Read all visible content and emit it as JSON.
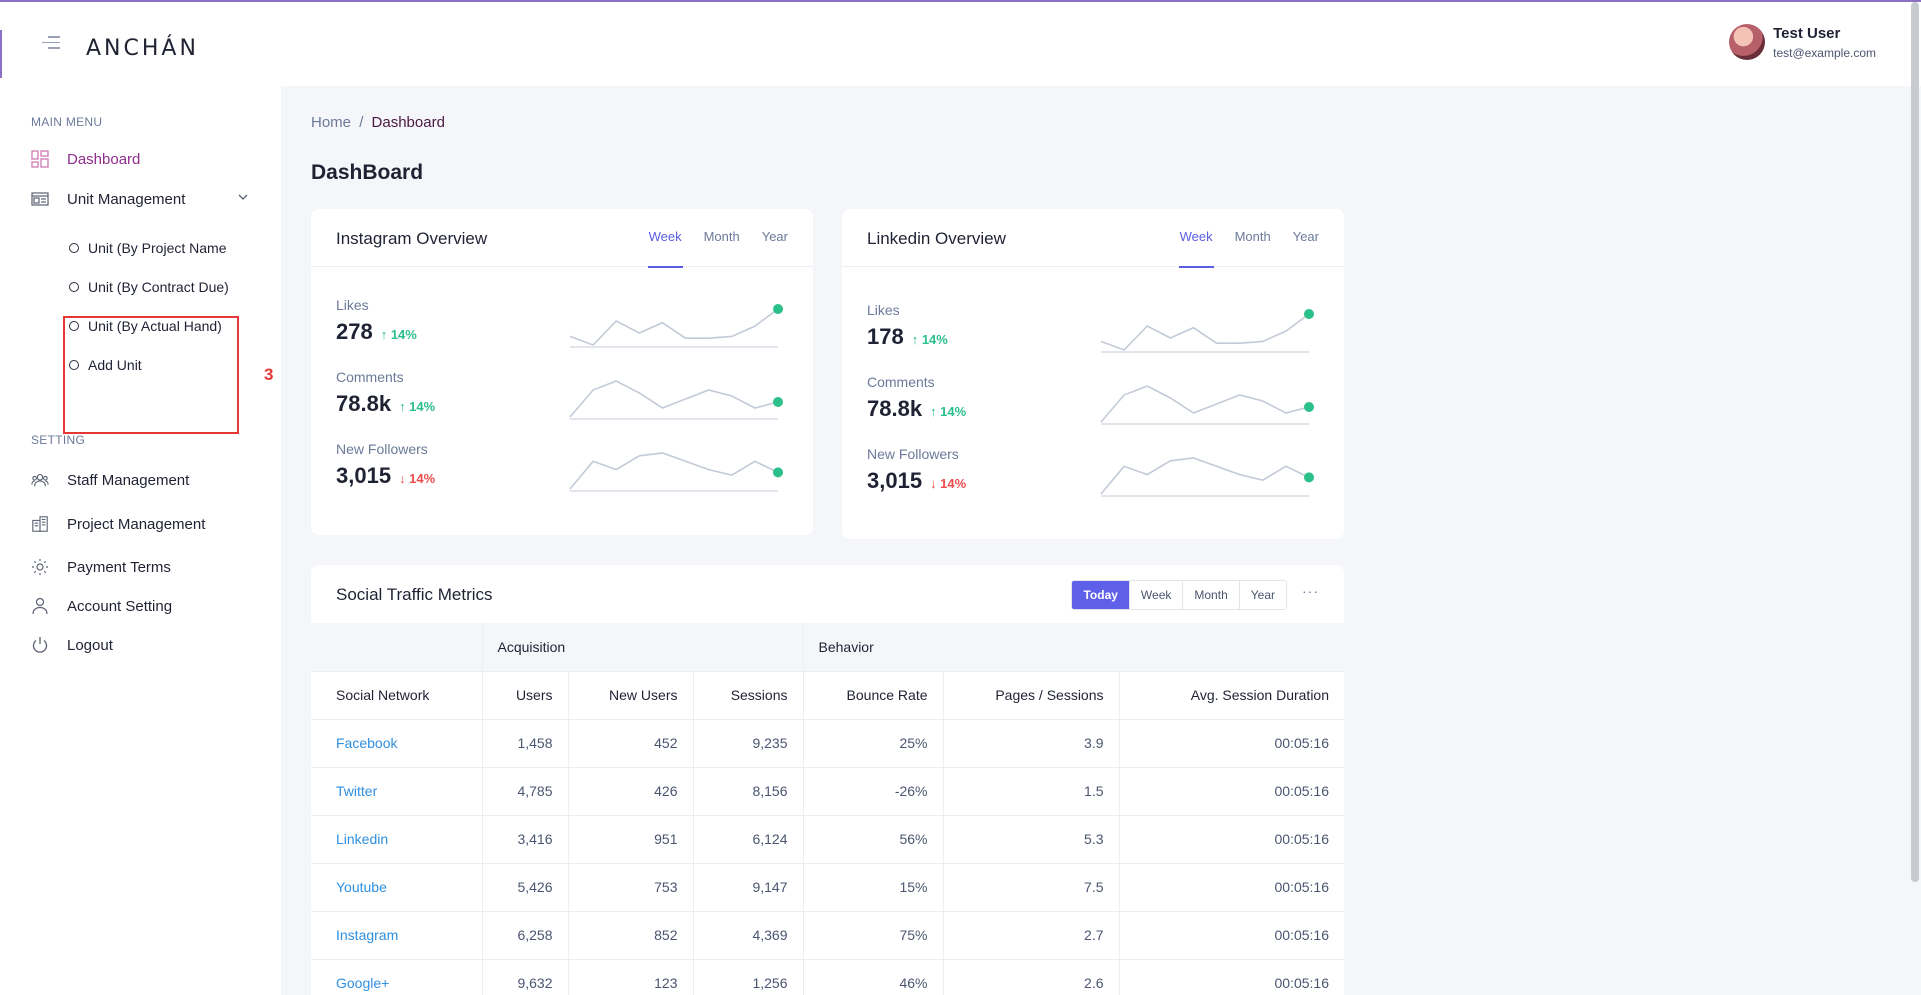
{
  "header": {
    "logo": "ANCHÁN",
    "user_name": "Test User",
    "user_email": "test@example.com"
  },
  "sidebar": {
    "main_menu_title": "MAIN MENU",
    "dashboard": "Dashboard",
    "unit_management": "Unit Management",
    "sub_items": [
      "Unit (By Project Name",
      "Unit (By Contract Due)",
      "Unit (By Actual Hand)",
      "Add Unit"
    ],
    "annotation_number": "3",
    "setting_title": "SETTING",
    "staff_management": "Staff Management",
    "project_management": "Project Management",
    "payment_terms": "Payment Terms",
    "account_setting": "Account Setting",
    "logout": "Logout"
  },
  "breadcrumb": {
    "home": "Home",
    "separator": "/",
    "current": "Dashboard"
  },
  "page_title": "DashBoard",
  "instagram": {
    "title": "Instagram Overview",
    "tabs": [
      "Week",
      "Month",
      "Year"
    ],
    "metrics": [
      {
        "label": "Likes",
        "value": "278",
        "change": "↑ 14%",
        "trend": "up",
        "spark": [
          6,
          1,
          15,
          8,
          14,
          5,
          5,
          6,
          12,
          22
        ]
      },
      {
        "label": "Comments",
        "value": "78.8k",
        "change": "↑ 14%",
        "trend": "up",
        "spark": [
          3,
          12,
          15,
          11,
          6,
          9,
          12,
          10,
          6,
          8
        ]
      },
      {
        "label": "New Followers",
        "value": "3,015",
        "change": "↓ 14%",
        "trend": "down",
        "spark": [
          0,
          10,
          7,
          12,
          13,
          10,
          7,
          5,
          10,
          6
        ]
      }
    ]
  },
  "linkedin": {
    "title": "Linkedin Overview",
    "tabs": [
      "Week",
      "Month",
      "Year"
    ],
    "metrics": [
      {
        "label": "Likes",
        "value": "178",
        "change": "↑ 14%",
        "trend": "up",
        "spark": [
          6,
          1,
          15,
          8,
          14,
          5,
          5,
          6,
          12,
          22
        ]
      },
      {
        "label": "Comments",
        "value": "78.8k",
        "change": "↑ 14%",
        "trend": "up",
        "spark": [
          3,
          12,
          15,
          11,
          6,
          9,
          12,
          10,
          6,
          8
        ]
      },
      {
        "label": "New Followers",
        "value": "3,015",
        "change": "↓ 14%",
        "trend": "down",
        "spark": [
          0,
          10,
          7,
          12,
          13,
          10,
          7,
          5,
          10,
          6
        ]
      }
    ]
  },
  "social": {
    "title": "Social Traffic Metrics",
    "tabs": [
      "Today",
      "Week",
      "Month",
      "Year"
    ],
    "more": "···",
    "group_headers": [
      "",
      "Acquisition",
      "Behavior"
    ],
    "columns": [
      "Social Network",
      "Users",
      "New Users",
      "Sessions",
      "Bounce Rate",
      "Pages / Sessions",
      "Avg. Session Duration"
    ],
    "rows": [
      [
        "Facebook",
        "1,458",
        "452",
        "9,235",
        "25%",
        "3.9",
        "00:05:16"
      ],
      [
        "Twitter",
        "4,785",
        "426",
        "8,156",
        "-26%",
        "1.5",
        "00:05:16"
      ],
      [
        "Linkedin",
        "3,416",
        "951",
        "6,124",
        "56%",
        "5.3",
        "00:05:16"
      ],
      [
        "Youtube",
        "5,426",
        "753",
        "9,147",
        "15%",
        "7.5",
        "00:05:16"
      ],
      [
        "Instagram",
        "6,258",
        "852",
        "4,369",
        "75%",
        "2.7",
        "00:05:16"
      ],
      [
        "Google+",
        "9,632",
        "123",
        "1,256",
        "46%",
        "2.6",
        "00:05:16"
      ]
    ]
  },
  "colors": {
    "accent": "#5b5de0",
    "active_nav": "#8e2d8c",
    "positive": "#2bbf8a",
    "negative": "#ef4d4d",
    "link": "#2f8fe0"
  }
}
